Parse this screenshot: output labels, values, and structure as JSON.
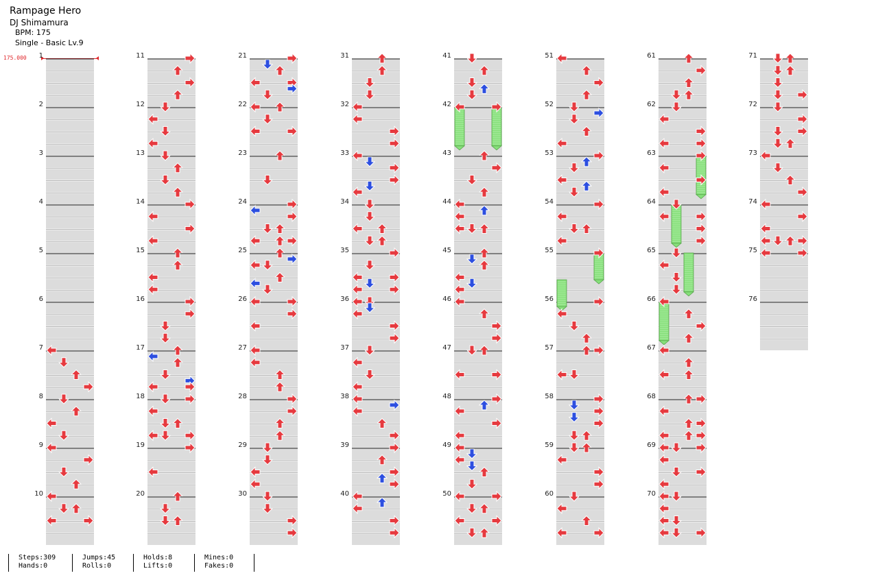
{
  "song": {
    "title": "Rampage Hero",
    "artist": "DJ Shimamura",
    "bpm_label": "BPM: 175",
    "difficulty_label": "Single - Basic  Lv.9"
  },
  "bpm_change": {
    "measure": 1,
    "value": "175.000"
  },
  "colors": {
    "note": "#e63a3f",
    "eighth": "#2d4fe0",
    "hold": "#86e07a",
    "lane_band": "#dcdcdc",
    "bpm": "#e0262b"
  },
  "stats": {
    "steps": "Steps:309",
    "hands": "Hands:0",
    "jumps": "Jumps:45",
    "rolls": "Rolls:0",
    "holds": "Holds:8",
    "lifts": "Lifts:0",
    "mines": "Mines:0",
    "fakes": "Fakes:0"
  },
  "measures": [
    "1",
    "2",
    "3",
    "4",
    "5",
    "6",
    "7",
    "8",
    "9",
    "10",
    "11",
    "12",
    "13",
    "14",
    "15",
    "16",
    "17",
    "18",
    "19",
    "20",
    "21",
    "22",
    "23",
    "24",
    "25",
    "26",
    "27",
    "28",
    "29",
    "30",
    "31",
    "32",
    "33",
    "34",
    "35",
    "36",
    "37",
    "38",
    "39",
    "40",
    "41",
    "42",
    "43",
    "44",
    "45",
    "46",
    "47",
    "48",
    "49",
    "50",
    "51",
    "52",
    "53",
    "54",
    "55",
    "56",
    "57",
    "58",
    "59",
    "60",
    "61",
    "62",
    "63",
    "64",
    "65",
    "66",
    "67",
    "68",
    "69",
    "70",
    "71",
    "72",
    "73",
    "74",
    "75",
    "76"
  ],
  "notes": [
    [
      7,
      0,
      0,
      "L"
    ],
    [
      7,
      1,
      0,
      "D"
    ],
    [
      7,
      2,
      0,
      "U"
    ],
    [
      7,
      3,
      0,
      "R"
    ],
    [
      8,
      0,
      0,
      "D"
    ],
    [
      8,
      1,
      0,
      "U"
    ],
    [
      8,
      2,
      0,
      "L"
    ],
    [
      8,
      3,
      0,
      "D"
    ],
    [
      9,
      0,
      0,
      "L"
    ],
    [
      9,
      1,
      0,
      "R"
    ],
    [
      9,
      2,
      0,
      "D"
    ],
    [
      9,
      3,
      0,
      "U"
    ],
    [
      10,
      0,
      0,
      "L"
    ],
    [
      10,
      1,
      0,
      "DU"
    ],
    [
      10,
      2,
      0,
      "LR"
    ],
    [
      11,
      0,
      0,
      "R"
    ],
    [
      11,
      1,
      0,
      "U"
    ],
    [
      11,
      2,
      0,
      "R"
    ],
    [
      11,
      3,
      0,
      "U"
    ],
    [
      12,
      0,
      0,
      "D"
    ],
    [
      12,
      1,
      0,
      "L"
    ],
    [
      12,
      2,
      0,
      "D"
    ],
    [
      12,
      3,
      0,
      "L"
    ],
    [
      13,
      0,
      0,
      "D"
    ],
    [
      13,
      1,
      0,
      "U"
    ],
    [
      13,
      2,
      0,
      "D"
    ],
    [
      13,
      3,
      0,
      "U"
    ],
    [
      14,
      0,
      0,
      "R"
    ],
    [
      14,
      1,
      0,
      "L"
    ],
    [
      14,
      2,
      0,
      "R"
    ],
    [
      14,
      3,
      0,
      "L"
    ],
    [
      15,
      0,
      0,
      "U"
    ],
    [
      15,
      1,
      0,
      "U"
    ],
    [
      15,
      2,
      0,
      "L"
    ],
    [
      15,
      3,
      0,
      "L"
    ],
    [
      16,
      0,
      0,
      "R"
    ],
    [
      16,
      1,
      0,
      "R"
    ],
    [
      16,
      2,
      0,
      "D"
    ],
    [
      16,
      3,
      0,
      "D"
    ],
    [
      17,
      0,
      0,
      "U"
    ],
    [
      17,
      0,
      1,
      "L"
    ],
    [
      17,
      1,
      0,
      "U"
    ],
    [
      17,
      2,
      0,
      "D"
    ],
    [
      17,
      2,
      1,
      "R"
    ],
    [
      17,
      3,
      0,
      "LR"
    ],
    [
      18,
      0,
      0,
      "DR"
    ],
    [
      18,
      1,
      0,
      "L"
    ],
    [
      18,
      2,
      0,
      "DU"
    ],
    [
      18,
      3,
      0,
      "LDR"
    ],
    [
      19,
      0,
      0,
      "R"
    ],
    [
      19,
      2,
      0,
      "L"
    ],
    [
      20,
      0,
      0,
      "U"
    ],
    [
      20,
      1,
      0,
      "D"
    ],
    [
      20,
      2,
      0,
      "DU"
    ],
    [
      21,
      0,
      0,
      "R"
    ],
    [
      21,
      0,
      1,
      "D"
    ],
    [
      21,
      1,
      0,
      "U"
    ],
    [
      21,
      2,
      0,
      "LR"
    ],
    [
      21,
      2,
      1,
      "R"
    ],
    [
      21,
      3,
      0,
      "D"
    ],
    [
      22,
      0,
      0,
      "LU"
    ],
    [
      22,
      1,
      0,
      "D"
    ],
    [
      22,
      2,
      0,
      "LR"
    ],
    [
      23,
      0,
      0,
      "U"
    ],
    [
      23,
      2,
      0,
      "D"
    ],
    [
      24,
      0,
      0,
      "R"
    ],
    [
      24,
      0,
      1,
      "L"
    ],
    [
      24,
      1,
      0,
      "R"
    ],
    [
      24,
      2,
      0,
      "DU"
    ],
    [
      24,
      3,
      0,
      "LUR"
    ],
    [
      25,
      0,
      0,
      "U"
    ],
    [
      25,
      0,
      1,
      "R"
    ],
    [
      25,
      1,
      0,
      "LD"
    ],
    [
      25,
      2,
      0,
      "U"
    ],
    [
      25,
      2,
      1,
      "L"
    ],
    [
      25,
      3,
      0,
      "D"
    ],
    [
      26,
      0,
      0,
      "LR"
    ],
    [
      26,
      1,
      0,
      "R"
    ],
    [
      26,
      2,
      0,
      "L"
    ],
    [
      27,
      0,
      0,
      "L"
    ],
    [
      27,
      1,
      0,
      "L"
    ],
    [
      27,
      2,
      0,
      "U"
    ],
    [
      27,
      3,
      0,
      "U"
    ],
    [
      28,
      0,
      0,
      "R"
    ],
    [
      28,
      1,
      0,
      "R"
    ],
    [
      28,
      2,
      0,
      "U"
    ],
    [
      28,
      3,
      0,
      "U"
    ],
    [
      29,
      0,
      0,
      "D"
    ],
    [
      29,
      1,
      0,
      "D"
    ],
    [
      29,
      2,
      0,
      "L"
    ],
    [
      29,
      3,
      0,
      "L"
    ],
    [
      30,
      0,
      0,
      "D"
    ],
    [
      30,
      1,
      0,
      "D"
    ],
    [
      30,
      2,
      0,
      "R"
    ],
    [
      30,
      3,
      0,
      "R"
    ],
    [
      31,
      0,
      0,
      "U"
    ],
    [
      31,
      1,
      0,
      "U"
    ],
    [
      31,
      2,
      0,
      "D"
    ],
    [
      31,
      3,
      0,
      "D"
    ],
    [
      32,
      0,
      0,
      "L"
    ],
    [
      32,
      1,
      0,
      "L"
    ],
    [
      32,
      2,
      0,
      "R"
    ],
    [
      32,
      3,
      0,
      "R"
    ],
    [
      33,
      0,
      0,
      "L"
    ],
    [
      33,
      0,
      1,
      "D"
    ],
    [
      33,
      1,
      0,
      "R"
    ],
    [
      33,
      2,
      0,
      "R"
    ],
    [
      33,
      2,
      1,
      "D"
    ],
    [
      33,
      3,
      0,
      "L"
    ],
    [
      34,
      0,
      0,
      "D"
    ],
    [
      34,
      1,
      0,
      "D"
    ],
    [
      34,
      2,
      0,
      "LU"
    ],
    [
      34,
      3,
      0,
      "DU"
    ],
    [
      35,
      0,
      0,
      "R"
    ],
    [
      35,
      1,
      0,
      "D"
    ],
    [
      35,
      2,
      0,
      "LR"
    ],
    [
      35,
      2,
      1,
      "D"
    ],
    [
      35,
      3,
      0,
      "LR"
    ],
    [
      36,
      0,
      0,
      "LD"
    ],
    [
      36,
      0,
      1,
      "D"
    ],
    [
      36,
      1,
      0,
      "L"
    ],
    [
      36,
      2,
      0,
      "R"
    ],
    [
      36,
      3,
      0,
      "R"
    ],
    [
      37,
      0,
      0,
      "D"
    ],
    [
      37,
      1,
      0,
      "L"
    ],
    [
      37,
      2,
      0,
      "D"
    ],
    [
      37,
      3,
      0,
      "L"
    ],
    [
      38,
      0,
      0,
      "L"
    ],
    [
      38,
      0,
      1,
      "R"
    ],
    [
      38,
      1,
      0,
      "L"
    ],
    [
      38,
      2,
      0,
      "U"
    ],
    [
      38,
      3,
      0,
      "R"
    ],
    [
      39,
      0,
      0,
      "R"
    ],
    [
      39,
      1,
      0,
      "U"
    ],
    [
      39,
      2,
      0,
      "R"
    ],
    [
      39,
      2,
      1,
      "U"
    ],
    [
      39,
      3,
      0,
      "R"
    ],
    [
      40,
      0,
      0,
      "L"
    ],
    [
      40,
      0,
      1,
      "U"
    ],
    [
      40,
      1,
      0,
      "L"
    ],
    [
      40,
      2,
      0,
      "R"
    ],
    [
      40,
      3,
      0,
      "R"
    ],
    [
      41,
      0,
      0,
      "D"
    ],
    [
      41,
      1,
      0,
      "U"
    ],
    [
      41,
      2,
      0,
      "D"
    ],
    [
      41,
      2,
      1,
      "U"
    ],
    [
      41,
      3,
      0,
      "D"
    ],
    [
      42,
      0,
      0,
      "LR"
    ],
    [
      43,
      0,
      0,
      "U"
    ],
    [
      43,
      1,
      0,
      "R"
    ],
    [
      43,
      2,
      0,
      "D"
    ],
    [
      43,
      3,
      0,
      "U"
    ],
    [
      44,
      0,
      0,
      "L"
    ],
    [
      44,
      0,
      1,
      "U"
    ],
    [
      44,
      1,
      0,
      "L"
    ],
    [
      44,
      2,
      0,
      "LDU"
    ],
    [
      45,
      0,
      0,
      "U"
    ],
    [
      45,
      0,
      1,
      "D"
    ],
    [
      45,
      1,
      0,
      "U"
    ],
    [
      45,
      2,
      0,
      "L"
    ],
    [
      45,
      2,
      1,
      "D"
    ],
    [
      45,
      3,
      0,
      "L"
    ],
    [
      46,
      0,
      0,
      "L"
    ],
    [
      46,
      1,
      0,
      "U"
    ],
    [
      46,
      2,
      0,
      "R"
    ],
    [
      46,
      3,
      0,
      "R"
    ],
    [
      47,
      0,
      0,
      "DU"
    ],
    [
      47,
      2,
      0,
      "LR"
    ],
    [
      48,
      0,
      0,
      "R"
    ],
    [
      48,
      0,
      1,
      "U"
    ],
    [
      48,
      1,
      0,
      "L"
    ],
    [
      48,
      2,
      0,
      "R"
    ],
    [
      48,
      3,
      0,
      "L"
    ],
    [
      49,
      0,
      0,
      "L"
    ],
    [
      49,
      0,
      1,
      "D"
    ],
    [
      49,
      1,
      0,
      "L"
    ],
    [
      49,
      1,
      1,
      "D"
    ],
    [
      49,
      2,
      0,
      "U"
    ],
    [
      49,
      3,
      0,
      "D"
    ],
    [
      50,
      0,
      0,
      "LR"
    ],
    [
      50,
      1,
      0,
      "DU"
    ],
    [
      50,
      2,
      0,
      "LR"
    ],
    [
      50,
      3,
      0,
      "DU"
    ],
    [
      51,
      0,
      0,
      "L"
    ],
    [
      51,
      1,
      0,
      "U"
    ],
    [
      51,
      2,
      0,
      "R"
    ],
    [
      51,
      3,
      0,
      "U"
    ],
    [
      52,
      0,
      0,
      "D"
    ],
    [
      52,
      0,
      1,
      "R"
    ],
    [
      52,
      1,
      0,
      "D"
    ],
    [
      52,
      2,
      0,
      "U"
    ],
    [
      52,
      3,
      0,
      "L"
    ],
    [
      53,
      0,
      0,
      "R"
    ],
    [
      53,
      0,
      1,
      "U"
    ],
    [
      53,
      1,
      0,
      "D"
    ],
    [
      53,
      2,
      0,
      "L"
    ],
    [
      53,
      2,
      1,
      "U"
    ],
    [
      53,
      3,
      0,
      "D"
    ],
    [
      54,
      0,
      0,
      "R"
    ],
    [
      54,
      1,
      0,
      "L"
    ],
    [
      54,
      2,
      0,
      "DU"
    ],
    [
      54,
      3,
      0,
      "L"
    ],
    [
      55,
      0,
      0,
      "R"
    ],
    [
      56,
      0,
      0,
      "R"
    ],
    [
      56,
      1,
      0,
      "L"
    ],
    [
      56,
      2,
      0,
      "D"
    ],
    [
      56,
      3,
      0,
      "U"
    ],
    [
      57,
      0,
      0,
      "UR"
    ],
    [
      57,
      2,
      0,
      "LD"
    ],
    [
      58,
      0,
      0,
      "R"
    ],
    [
      58,
      0,
      1,
      "D"
    ],
    [
      58,
      1,
      0,
      "R"
    ],
    [
      58,
      1,
      1,
      "D"
    ],
    [
      58,
      2,
      0,
      "R"
    ],
    [
      58,
      3,
      0,
      "DU"
    ],
    [
      59,
      0,
      0,
      "DU"
    ],
    [
      59,
      1,
      0,
      "L"
    ],
    [
      59,
      2,
      0,
      "R"
    ],
    [
      59,
      3,
      0,
      "R"
    ],
    [
      60,
      0,
      0,
      "D"
    ],
    [
      60,
      1,
      0,
      "L"
    ],
    [
      60,
      2,
      0,
      "U"
    ],
    [
      60,
      3,
      0,
      "LR"
    ],
    [
      61,
      0,
      0,
      "U"
    ],
    [
      61,
      1,
      0,
      "R"
    ],
    [
      61,
      2,
      0,
      "U"
    ],
    [
      61,
      3,
      0,
      "DU"
    ],
    [
      62,
      0,
      0,
      "D"
    ],
    [
      62,
      1,
      0,
      "L"
    ],
    [
      62,
      2,
      0,
      "R"
    ],
    [
      62,
      3,
      0,
      "LR"
    ],
    [
      63,
      0,
      0,
      "R"
    ],
    [
      63,
      1,
      0,
      "L"
    ],
    [
      63,
      2,
      0,
      "R"
    ],
    [
      63,
      3,
      0,
      "L"
    ],
    [
      64,
      0,
      0,
      "D"
    ],
    [
      64,
      1,
      0,
      "LR"
    ],
    [
      64,
      2,
      0,
      "R"
    ],
    [
      64,
      3,
      0,
      "R"
    ],
    [
      65,
      0,
      0,
      "D"
    ],
    [
      65,
      1,
      0,
      "L"
    ],
    [
      65,
      2,
      0,
      "D"
    ],
    [
      65,
      3,
      0,
      "D"
    ],
    [
      66,
      0,
      0,
      "L"
    ],
    [
      66,
      1,
      0,
      "U"
    ],
    [
      66,
      2,
      0,
      "R"
    ],
    [
      66,
      3,
      0,
      "U"
    ],
    [
      67,
      0,
      0,
      "L"
    ],
    [
      67,
      1,
      0,
      "U"
    ],
    [
      67,
      2,
      0,
      "LU"
    ],
    [
      67,
      3,
      0,
      ""
    ],
    [
      68,
      0,
      0,
      "UR"
    ],
    [
      68,
      1,
      0,
      "L"
    ],
    [
      68,
      2,
      0,
      "UR"
    ],
    [
      68,
      3,
      0,
      "LUR"
    ],
    [
      69,
      0,
      0,
      "LDR"
    ],
    [
      69,
      1,
      0,
      "L"
    ],
    [
      69,
      2,
      0,
      "DR"
    ],
    [
      69,
      3,
      0,
      "L"
    ],
    [
      70,
      0,
      0,
      "LD"
    ],
    [
      70,
      1,
      0,
      "L"
    ],
    [
      70,
      2,
      0,
      "LD"
    ],
    [
      70,
      3,
      0,
      "LDR"
    ],
    [
      71,
      0,
      0,
      "DU"
    ],
    [
      71,
      1,
      0,
      "DU"
    ],
    [
      71,
      2,
      0,
      "D"
    ],
    [
      71,
      3,
      0,
      "DR"
    ],
    [
      72,
      0,
      0,
      "D"
    ],
    [
      72,
      1,
      0,
      "R"
    ],
    [
      72,
      2,
      0,
      "DR"
    ],
    [
      72,
      3,
      0,
      "DU"
    ],
    [
      73,
      0,
      0,
      "L"
    ],
    [
      73,
      1,
      0,
      "D"
    ],
    [
      73,
      2,
      0,
      "U"
    ],
    [
      73,
      3,
      0,
      "R"
    ],
    [
      74,
      0,
      0,
      "L"
    ],
    [
      74,
      1,
      0,
      "R"
    ],
    [
      74,
      2,
      0,
      "L"
    ],
    [
      74,
      3,
      0,
      "LDUR"
    ],
    [
      75,
      0,
      0,
      "LR"
    ]
  ],
  "holds": [
    [
      42,
      0,
      0,
      0.0,
      0.8
    ],
    [
      42,
      3,
      0,
      0.0,
      0.8
    ],
    [
      55,
      3,
      0,
      0.0,
      0.55
    ],
    [
      56,
      0,
      0,
      -0.45,
      0.1
    ],
    [
      63,
      3,
      0,
      0.0,
      0.8
    ],
    [
      64,
      1,
      0,
      0.0,
      0.8
    ],
    [
      65,
      2,
      0,
      0.0,
      0.8
    ],
    [
      66,
      0,
      0,
      0.0,
      0.8
    ]
  ]
}
